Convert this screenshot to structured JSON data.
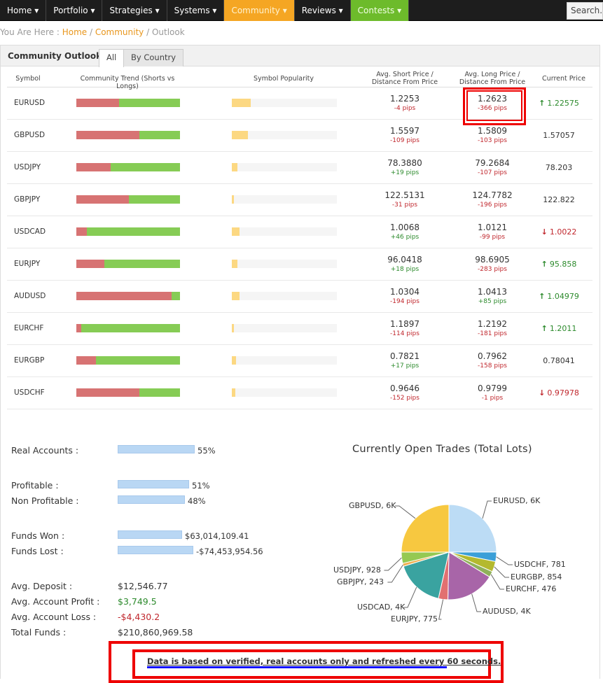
{
  "nav": {
    "items": [
      {
        "label": "Home ▾"
      },
      {
        "label": "Portfolio ▾"
      },
      {
        "label": "Strategies ▾"
      },
      {
        "label": "Systems ▾"
      },
      {
        "label": "Community ▾"
      },
      {
        "label": "Reviews ▾"
      },
      {
        "label": "Contests ▾"
      }
    ],
    "search_placeholder": "Search..."
  },
  "breadcrumb": {
    "prefix": "You Are Here : ",
    "home": "Home",
    "sep1": " / ",
    "community": "Community",
    "sep2": " / ",
    "current": "Outlook"
  },
  "panel": {
    "title": "Community Outlook",
    "tabs": [
      {
        "label": "All"
      },
      {
        "label": "By Country"
      }
    ]
  },
  "table": {
    "headers": {
      "symbol": "Symbol",
      "trend": "Community Trend (Shorts vs Longs)",
      "popularity": "Symbol Popularity",
      "short_line1": "Avg. Short Price /",
      "short_line2": "Distance From Price",
      "long_line1": "Avg. Long Price /",
      "long_line2": "Distance From Price",
      "current": "Current Price"
    },
    "rows": [
      {
        "symbol": "EURUSD",
        "short_pct": 41,
        "popularity_pct": 18,
        "short_price": "1.2253",
        "short_pips": "-4 pips",
        "short_pips_sign": "neg",
        "long_price": "1.2623",
        "long_pips": "-366 pips",
        "long_pips_sign": "neg",
        "current": "1.22575",
        "direction": "up"
      },
      {
        "symbol": "GBPUSD",
        "short_pct": 61,
        "popularity_pct": 15,
        "short_price": "1.5597",
        "short_pips": "-109 pips",
        "short_pips_sign": "neg",
        "long_price": "1.5809",
        "long_pips": "-103 pips",
        "long_pips_sign": "neg",
        "current": "1.57057",
        "direction": "none"
      },
      {
        "symbol": "USDJPY",
        "short_pct": 33,
        "popularity_pct": 5,
        "short_price": "78.3880",
        "short_pips": "+19 pips",
        "short_pips_sign": "pos",
        "long_price": "79.2684",
        "long_pips": "-107 pips",
        "long_pips_sign": "neg",
        "current": "78.203",
        "direction": "none"
      },
      {
        "symbol": "GBPJPY",
        "short_pct": 51,
        "popularity_pct": 2,
        "short_price": "122.5131",
        "short_pips": "-31 pips",
        "short_pips_sign": "neg",
        "long_price": "124.7782",
        "long_pips": "-196 pips",
        "long_pips_sign": "neg",
        "current": "122.822",
        "direction": "none"
      },
      {
        "symbol": "USDCAD",
        "short_pct": 10,
        "popularity_pct": 7,
        "short_price": "1.0068",
        "short_pips": "+46 pips",
        "short_pips_sign": "pos",
        "long_price": "1.0121",
        "long_pips": "-99 pips",
        "long_pips_sign": "neg",
        "current": "1.0022",
        "direction": "down"
      },
      {
        "symbol": "EURJPY",
        "short_pct": 27,
        "popularity_pct": 5,
        "short_price": "96.0418",
        "short_pips": "+18 pips",
        "short_pips_sign": "pos",
        "long_price": "98.6905",
        "long_pips": "-283 pips",
        "long_pips_sign": "neg",
        "current": "95.858",
        "direction": "up"
      },
      {
        "symbol": "AUDUSD",
        "short_pct": 92,
        "popularity_pct": 7,
        "short_price": "1.0304",
        "short_pips": "-194 pips",
        "short_pips_sign": "neg",
        "long_price": "1.0413",
        "long_pips": "+85 pips",
        "long_pips_sign": "pos",
        "current": "1.04979",
        "direction": "up"
      },
      {
        "symbol": "EURCHF",
        "short_pct": 5,
        "popularity_pct": 2,
        "short_price": "1.1897",
        "short_pips": "-114 pips",
        "short_pips_sign": "neg",
        "long_price": "1.2192",
        "long_pips": "-181 pips",
        "long_pips_sign": "neg",
        "current": "1.2011",
        "direction": "up"
      },
      {
        "symbol": "EURGBP",
        "short_pct": 19,
        "popularity_pct": 4,
        "short_price": "0.7821",
        "short_pips": "+17 pips",
        "short_pips_sign": "pos",
        "long_price": "0.7962",
        "long_pips": "-158 pips",
        "long_pips_sign": "neg",
        "current": "0.78041",
        "direction": "none"
      },
      {
        "symbol": "USDCHF",
        "short_pct": 61,
        "popularity_pct": 3,
        "short_price": "0.9646",
        "short_pips": "-152 pips",
        "short_pips_sign": "neg",
        "long_price": "0.9799",
        "long_pips": "-1 pips",
        "long_pips_sign": "neg",
        "current": "0.97978",
        "direction": "down"
      }
    ]
  },
  "stats": {
    "real_accounts": {
      "label": "Real Accounts :",
      "value": "55%",
      "pct": 55
    },
    "profitable": {
      "label": "Profitable :",
      "value": "51%",
      "pct": 51
    },
    "non_profitable": {
      "label": "Non Profitable :",
      "value": "48%",
      "pct": 48
    },
    "funds_won": {
      "label": "Funds Won :",
      "value": "$63,014,109.41",
      "pct": 46
    },
    "funds_lost": {
      "label": "Funds Lost :",
      "value": "-$74,453,954.56",
      "pct": 54
    },
    "avg_deposit": {
      "label": "Avg. Deposit :",
      "value": "$12,546.77"
    },
    "avg_profit": {
      "label": "Avg. Account Profit :",
      "value": "$3,749.5"
    },
    "avg_loss": {
      "label": "Avg. Account Loss :",
      "value": "-$4,430.2"
    },
    "total_funds": {
      "label": "Total Funds :",
      "value": "$210,860,969.58"
    }
  },
  "chart_data": {
    "type": "pie",
    "title": "Currently Open Trades (Total Lots)",
    "slices": [
      {
        "name": "EURUSD",
        "label": "EURUSD, 6K",
        "value": 6000,
        "color": "#bcdcf5"
      },
      {
        "name": "USDCHF",
        "label": "USDCHF, 781",
        "value": 781,
        "color": "#3a9fd8"
      },
      {
        "name": "EURGBP",
        "label": "EURGBP, 854",
        "value": 854,
        "color": "#b4b92e"
      },
      {
        "name": "EURCHF",
        "label": "EURCHF, 476",
        "value": 476,
        "color": "#8fb15a"
      },
      {
        "name": "AUDUSD",
        "label": "AUDUSD, 4K",
        "value": 4000,
        "color": "#a865a8"
      },
      {
        "name": "EURJPY",
        "label": "EURJPY, 775",
        "value": 775,
        "color": "#e27070"
      },
      {
        "name": "USDCAD",
        "label": "USDCAD, 4K",
        "value": 4000,
        "color": "#3aa3a0"
      },
      {
        "name": "GBPJPY",
        "label": "GBPJPY, 243",
        "value": 243,
        "color": "#f0b050"
      },
      {
        "name": "USDJPY",
        "label": "USDJPY, 928",
        "value": 928,
        "color": "#95c952"
      },
      {
        "name": "GBPUSD",
        "label": "GBPUSD, 6K",
        "value": 6000,
        "color": "#f7c840"
      }
    ]
  },
  "notice": {
    "text": "Data is based on verified, real accounts only and refreshed every 60 seconds."
  }
}
